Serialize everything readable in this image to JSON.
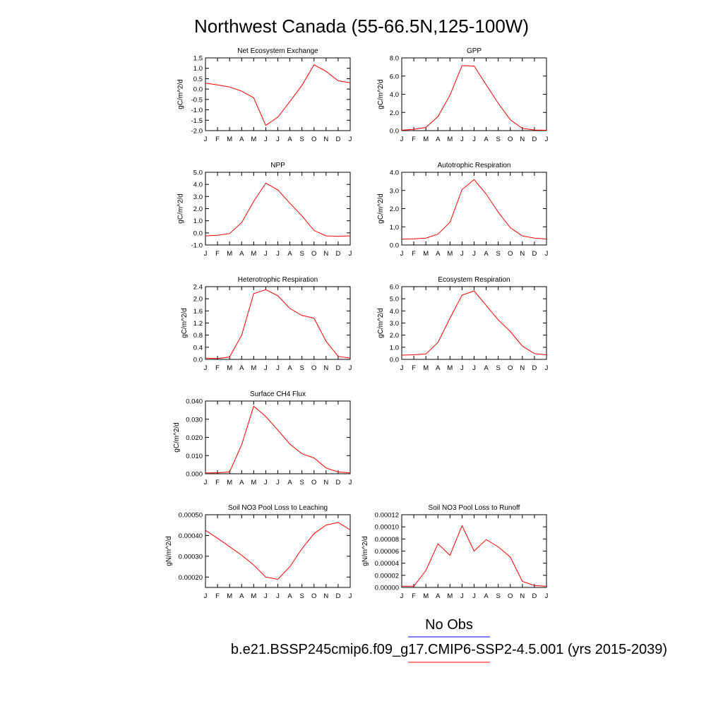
{
  "figure": {
    "title": "Northwest Canada (55-66.5N,125-100W)",
    "legend": [
      {
        "label": "No Obs",
        "color": "#0000ff"
      },
      {
        "label": "b.e21.BSSP245cmip6.f09_g17.CMIP6-SSP2-4.5.001 (yrs 2015-2039)",
        "color": "#ff0000"
      }
    ]
  },
  "chart_data": [
    {
      "type": "line",
      "title": "Net Ecosystem Exchange",
      "ylabel": "gC/m^2/d",
      "x": [
        "J",
        "F",
        "M",
        "A",
        "M",
        "J",
        "J",
        "A",
        "S",
        "O",
        "N",
        "D",
        "J"
      ],
      "ylim": [
        -2.0,
        1.5
      ],
      "yticks": [
        "1.5",
        "1.0",
        "0.5",
        "0.0",
        "-0.5",
        "-1.0",
        "-1.5",
        "-2.0"
      ],
      "series": [
        {
          "color": "#ff0000",
          "values": [
            0.28,
            0.2,
            0.1,
            -0.1,
            -0.42,
            -1.75,
            -1.35,
            -0.6,
            0.18,
            1.17,
            0.85,
            0.4,
            0.3
          ]
        }
      ]
    },
    {
      "type": "line",
      "title": "GPP",
      "ylabel": "gC/m^2/d",
      "x": [
        "J",
        "F",
        "M",
        "A",
        "M",
        "J",
        "J",
        "A",
        "S",
        "O",
        "N",
        "D",
        "J"
      ],
      "ylim": [
        0.0,
        8.0
      ],
      "yticks": [
        "8.0",
        "6.0",
        "4.0",
        "2.0",
        "0.0"
      ],
      "series": [
        {
          "color": "#ff0000",
          "values": [
            0.05,
            0.15,
            0.35,
            1.55,
            3.9,
            7.15,
            7.1,
            5.05,
            3.0,
            1.2,
            0.25,
            0.07,
            0.05
          ]
        }
      ]
    },
    {
      "type": "line",
      "title": "NPP",
      "ylabel": "gC/m^2/d",
      "x": [
        "J",
        "F",
        "M",
        "A",
        "M",
        "J",
        "J",
        "A",
        "S",
        "O",
        "N",
        "D",
        "J"
      ],
      "ylim": [
        -1.0,
        5.0
      ],
      "yticks": [
        "5.0",
        "4.0",
        "3.0",
        "2.0",
        "1.0",
        "0.0",
        "-1.0"
      ],
      "series": [
        {
          "color": "#ff0000",
          "values": [
            -0.25,
            -0.2,
            -0.05,
            0.85,
            2.6,
            4.1,
            3.55,
            2.45,
            1.4,
            0.2,
            -0.25,
            -0.28,
            -0.25
          ]
        }
      ]
    },
    {
      "type": "line",
      "title": "Autotrophic Respiration",
      "ylabel": "gC/m^2/d",
      "x": [
        "J",
        "F",
        "M",
        "A",
        "M",
        "J",
        "J",
        "A",
        "S",
        "O",
        "N",
        "D",
        "J"
      ],
      "ylim": [
        0.0,
        4.0
      ],
      "yticks": [
        "4.0",
        "3.0",
        "2.0",
        "1.0",
        "0.0"
      ],
      "series": [
        {
          "color": "#ff0000",
          "values": [
            0.32,
            0.34,
            0.38,
            0.6,
            1.25,
            3.05,
            3.6,
            2.8,
            1.8,
            0.95,
            0.5,
            0.38,
            0.33
          ]
        }
      ]
    },
    {
      "type": "line",
      "title": "Heterotrophic Respiration",
      "ylabel": "gC/m^2/d",
      "x": [
        "J",
        "F",
        "M",
        "A",
        "M",
        "J",
        "J",
        "A",
        "S",
        "O",
        "N",
        "D",
        "J"
      ],
      "ylim": [
        0.0,
        2.4
      ],
      "yticks": [
        "2.4",
        "2.0",
        "1.6",
        "1.2",
        "0.8",
        "0.4",
        "0.0"
      ],
      "series": [
        {
          "color": "#ff0000",
          "values": [
            0.04,
            0.03,
            0.08,
            0.8,
            2.17,
            2.3,
            2.1,
            1.68,
            1.45,
            1.36,
            0.6,
            0.1,
            0.04
          ]
        }
      ]
    },
    {
      "type": "line",
      "title": "Ecosystem Respiration",
      "ylabel": "gC/m^2/d",
      "x": [
        "J",
        "F",
        "M",
        "A",
        "M",
        "J",
        "J",
        "A",
        "S",
        "O",
        "N",
        "D",
        "J"
      ],
      "ylim": [
        0.0,
        6.0
      ],
      "yticks": [
        "6.0",
        "5.0",
        "4.0",
        "3.0",
        "2.0",
        "1.0",
        "0.0"
      ],
      "series": [
        {
          "color": "#ff0000",
          "values": [
            0.35,
            0.38,
            0.45,
            1.4,
            3.4,
            5.3,
            5.65,
            4.45,
            3.25,
            2.3,
            1.1,
            0.48,
            0.37
          ]
        }
      ]
    },
    {
      "type": "line",
      "title": "Surface CH4 Flux",
      "ylabel": "gC/m^2/d",
      "x": [
        "J",
        "F",
        "M",
        "A",
        "M",
        "J",
        "J",
        "A",
        "S",
        "O",
        "N",
        "D",
        "J"
      ],
      "ylim": [
        0.0,
        0.04
      ],
      "yticks": [
        "0.040",
        "0.030",
        "0.020",
        "0.010",
        "0.000"
      ],
      "series": [
        {
          "color": "#ff0000",
          "values": [
            0.0005,
            0.0005,
            0.001,
            0.016,
            0.0372,
            0.0315,
            0.024,
            0.0163,
            0.011,
            0.0087,
            0.0032,
            0.001,
            0.0005
          ]
        }
      ]
    },
    {
      "type": "line",
      "title": "Soil NO3 Pool Loss to Leaching",
      "ylabel": "gN/m^2/d",
      "x": [
        "J",
        "F",
        "M",
        "A",
        "M",
        "J",
        "J",
        "A",
        "S",
        "O",
        "N",
        "D",
        "J"
      ],
      "ylim": [
        0.00015,
        0.0005
      ],
      "yticks": [
        "0.00050",
        "0.00040",
        "0.00030",
        "0.00020"
      ],
      "series": [
        {
          "color": "#ff0000",
          "values": [
            0.000425,
            0.000387,
            0.000346,
            0.000305,
            0.000258,
            0.0002,
            0.000189,
            0.00025,
            0.000337,
            0.000409,
            0.00045,
            0.000463,
            0.000427
          ]
        }
      ]
    },
    {
      "type": "line",
      "title": "Soil NO3 Pool Loss to Runoff",
      "ylabel": "gN/m^2/d",
      "x": [
        "J",
        "F",
        "M",
        "A",
        "M",
        "J",
        "J",
        "A",
        "S",
        "O",
        "N",
        "D",
        "J"
      ],
      "ylim": [
        0.0,
        0.00012
      ],
      "yticks": [
        "0.00012",
        "0.00010",
        "0.00008",
        "0.00006",
        "0.00004",
        "0.00002",
        "0.00000"
      ],
      "series": [
        {
          "color": "#ff0000",
          "values": [
            2e-06,
            2e-06,
            2.8e-05,
            7.2e-05,
            5.3e-05,
            0.000102,
            6e-05,
            7.9e-05,
            6.7e-05,
            5e-05,
            1e-05,
            3e-06,
            2e-06
          ]
        }
      ]
    }
  ]
}
